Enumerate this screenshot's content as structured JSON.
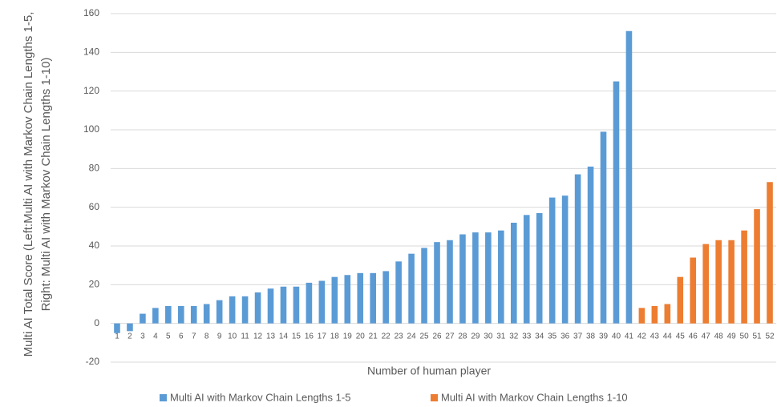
{
  "chart_data": {
    "type": "bar",
    "xlabel": "Number of human player",
    "ylabel": "Multi AI Total Score (Left:Multi AI with Markov Chain Lengths 1-5, Right: Multi AI with Markov Chain Lengths 1-10)",
    "categories": [
      1,
      2,
      3,
      4,
      5,
      6,
      7,
      8,
      9,
      10,
      11,
      12,
      13,
      14,
      15,
      16,
      17,
      18,
      19,
      20,
      21,
      22,
      23,
      24,
      25,
      26,
      27,
      28,
      29,
      30,
      31,
      32,
      33,
      34,
      35,
      36,
      37,
      38,
      39,
      40,
      41,
      42,
      43,
      44,
      45,
      46,
      47,
      48,
      49,
      50,
      51,
      52
    ],
    "series": [
      {
        "name": "Multi AI with Markov Chain Lengths 1-5",
        "color": "#5b9bd5",
        "values": [
          -5,
          -4,
          5,
          8,
          9,
          9,
          9,
          10,
          12,
          14,
          14,
          16,
          18,
          19,
          19,
          21,
          22,
          24,
          25,
          26,
          26,
          27,
          32,
          36,
          39,
          42,
          43,
          46,
          47,
          47,
          48,
          52,
          56,
          57,
          65,
          66,
          77,
          81,
          99,
          125,
          151,
          null,
          null,
          null,
          null,
          null,
          null,
          null,
          null,
          null,
          null,
          null
        ]
      },
      {
        "name": "Multi AI with Markov Chain Lengths 1-10",
        "color": "#ed7d31",
        "values": [
          null,
          null,
          null,
          null,
          null,
          null,
          null,
          null,
          null,
          null,
          null,
          null,
          null,
          null,
          null,
          null,
          null,
          null,
          null,
          null,
          null,
          null,
          null,
          null,
          null,
          null,
          null,
          null,
          null,
          null,
          null,
          null,
          null,
          null,
          null,
          null,
          null,
          null,
          null,
          null,
          null,
          8,
          9,
          10,
          24,
          34,
          41,
          43,
          43,
          48,
          59,
          73
        ]
      }
    ],
    "ylim": [
      -20,
      160
    ],
    "yticks": [
      -20,
      0,
      20,
      40,
      60,
      80,
      100,
      120,
      140,
      160
    ],
    "grid": true,
    "legend": "bottom"
  }
}
